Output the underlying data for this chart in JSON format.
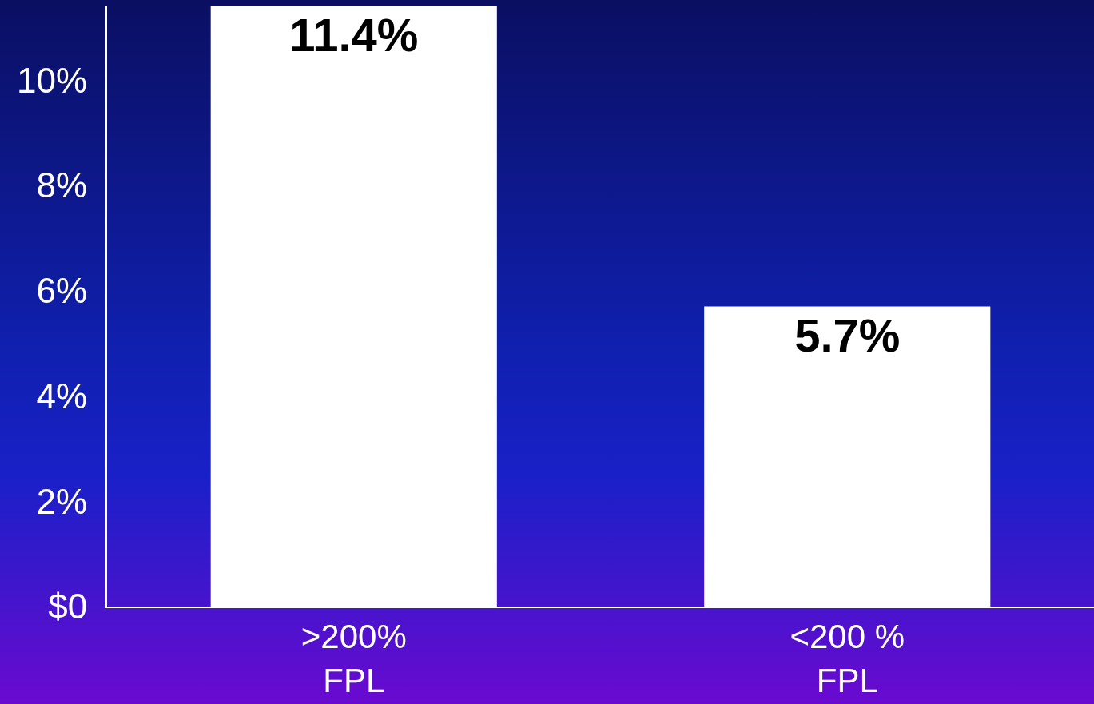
{
  "chart_data": {
    "type": "bar",
    "categories": [
      ">200%\nFPL",
      "<200 %\nFPL"
    ],
    "values": [
      11.4,
      5.7
    ],
    "value_labels": [
      "11.4%",
      "5.7%"
    ],
    "color": "#ffffff",
    "ylim": [
      0,
      11.4
    ],
    "yticks": [
      {
        "value": 0,
        "label": "$0"
      },
      {
        "value": 2,
        "label": "2%"
      },
      {
        "value": 4,
        "label": "4%"
      },
      {
        "value": 6,
        "label": "6%"
      },
      {
        "value": 8,
        "label": "8%"
      },
      {
        "value": 10,
        "label": "10%"
      }
    ],
    "grid": false,
    "legend": false
  }
}
